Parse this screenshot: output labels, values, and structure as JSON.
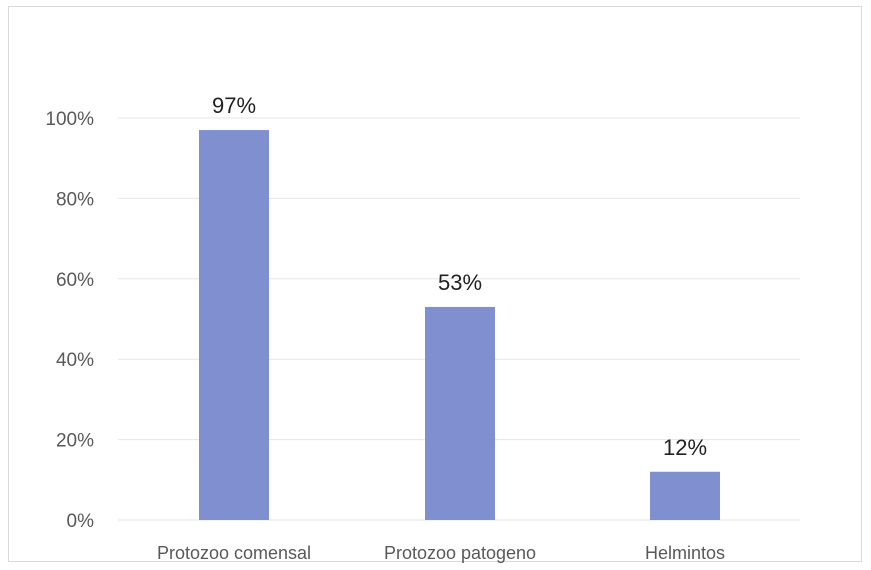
{
  "chart_data": {
    "type": "bar",
    "title": "",
    "xlabel": "",
    "ylabel": "",
    "categories": [
      "Protozoo comensal",
      "Protozoo patogeno",
      "Helmintos"
    ],
    "values": [
      97,
      53,
      12
    ],
    "data_labels": [
      "97%",
      "53%",
      "12%"
    ],
    "ylim": [
      0,
      100
    ],
    "yticks": [
      "0%",
      "20%",
      "40%",
      "60%",
      "80%",
      "100%"
    ],
    "grid": true,
    "legend": "none",
    "bar_color": "#7f8fcf"
  }
}
